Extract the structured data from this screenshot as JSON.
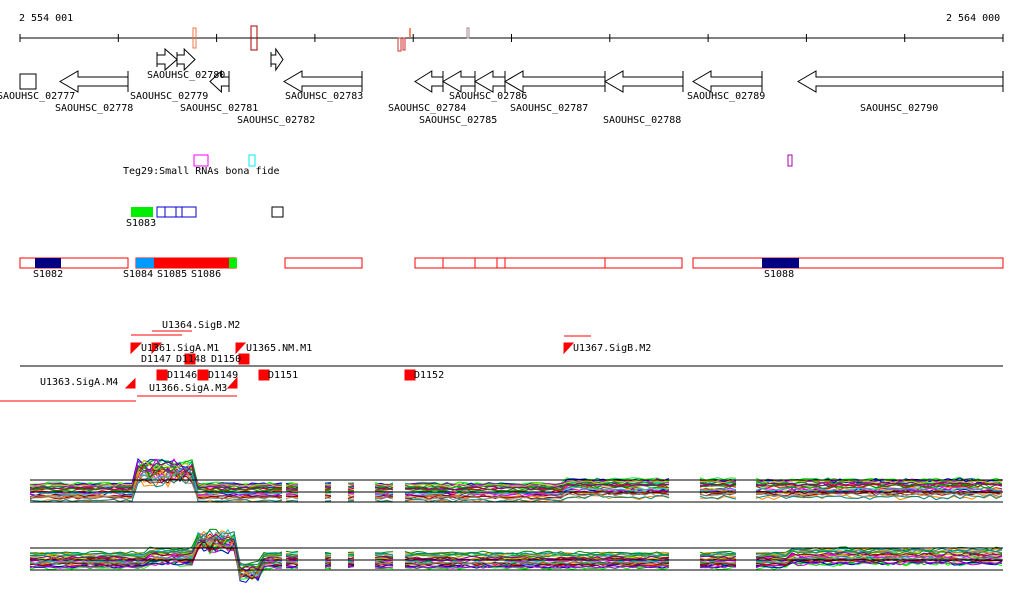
{
  "ruler": {
    "start": "2 554 001",
    "end": "2 564 000"
  },
  "genes": [
    "SAOUHSC_02777",
    "SAOUHSC_02778",
    "SAOUHSC_02779",
    "SAOUHSC_02780",
    "SAOUHSC_02781",
    "SAOUHSC_02782",
    "SAOUHSC_02783",
    "SAOUHSC_02784",
    "SAOUHSC_02785",
    "SAOUHSC_02786",
    "SAOUHSC_02787",
    "SAOUHSC_02788",
    "SAOUHSC_02789",
    "SAOUHSC_02790"
  ],
  "srna_track": {
    "label": "Teg29:Small RNAs bona fide"
  },
  "features": {
    "s1083": "S1083",
    "s1082": "S1082",
    "s1084": "S1084",
    "s1085": "S1085",
    "s1086": "S1086",
    "s1088": "S1088"
  },
  "promoters": [
    "U1361.SigA.M1",
    "U1364.SigB.M2",
    "U1365.NM.M1",
    "U1367.SigB.M2",
    "U1363.SigA.M4",
    "U1366.SigA.M3"
  ],
  "terminators": [
    "D1147",
    "D1148",
    "D1150",
    "D1146",
    "D1149",
    "D1151",
    "D1152"
  ],
  "colors": {
    "feature_red": "#ff0000",
    "navy": "#000080",
    "green": "#00ff00",
    "blue": "#0099ff"
  }
}
